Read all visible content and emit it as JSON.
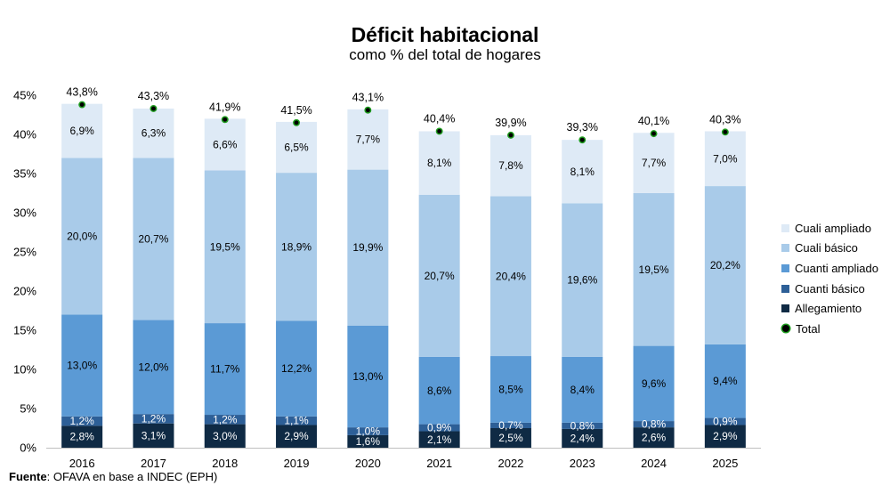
{
  "chart_data": {
    "type": "bar",
    "stacked": true,
    "title": "Déficit habitacional",
    "subtitle": "como % del total de hogares",
    "categories": [
      "2016",
      "2017",
      "2018",
      "2019",
      "2020",
      "2021",
      "2022",
      "2023",
      "2024",
      "2025"
    ],
    "series": [
      {
        "name": "Allegamiento",
        "color": "#0f2a44",
        "values": [
          2.8,
          3.1,
          3.0,
          2.9,
          1.6,
          2.1,
          2.5,
          2.4,
          2.6,
          2.9
        ],
        "labels": [
          "2,8%",
          "3,1%",
          "3,0%",
          "2,9%",
          "1,6%",
          "2,1%",
          "2,5%",
          "2,4%",
          "2,6%",
          "2,9%"
        ]
      },
      {
        "name": "Cuanti básico",
        "color": "#2d5f97",
        "values": [
          1.2,
          1.2,
          1.2,
          1.1,
          1.0,
          0.9,
          0.7,
          0.8,
          0.8,
          0.9
        ],
        "labels": [
          "1,2%",
          "1,2%",
          "1,2%",
          "1,1%",
          "1,0%",
          "0,9%",
          "0,7%",
          "0,8%",
          "0,8%",
          "0,9%"
        ]
      },
      {
        "name": "Cuanti ampliado",
        "color": "#5b9ad5",
        "values": [
          13.0,
          12.0,
          11.7,
          12.2,
          13.0,
          8.6,
          8.5,
          8.4,
          9.6,
          9.4
        ],
        "labels": [
          "13,0%",
          "12,0%",
          "11,7%",
          "12,2%",
          "13,0%",
          "8,6%",
          "8,5%",
          "8,4%",
          "9,6%",
          "9,4%"
        ]
      },
      {
        "name": "Cuali básico",
        "color": "#a9cbe9",
        "values": [
          20.0,
          20.7,
          19.5,
          18.9,
          19.9,
          20.7,
          20.4,
          19.6,
          19.5,
          20.2
        ],
        "labels": [
          "20,0%",
          "20,7%",
          "19,5%",
          "18,9%",
          "19,9%",
          "20,7%",
          "20,4%",
          "19,6%",
          "19,5%",
          "20,2%"
        ]
      },
      {
        "name": "Cuali ampliado",
        "color": "#deeaf6",
        "values": [
          6.9,
          6.3,
          6.6,
          6.5,
          7.7,
          8.1,
          7.8,
          8.1,
          7.7,
          7.0
        ],
        "labels": [
          "6,9%",
          "6,3%",
          "6,6%",
          "6,5%",
          "7,7%",
          "8,1%",
          "7,8%",
          "8,1%",
          "7,7%",
          "7,0%"
        ]
      }
    ],
    "total": {
      "name": "Total",
      "values": [
        43.8,
        43.3,
        41.9,
        41.5,
        43.1,
        40.4,
        39.9,
        39.3,
        40.1,
        40.3
      ],
      "labels": [
        "43,8%",
        "43,3%",
        "41,9%",
        "41,5%",
        "43,1%",
        "40,4%",
        "39,9%",
        "39,3%",
        "40,1%",
        "40,3%"
      ]
    },
    "ylim": [
      0,
      45
    ],
    "yticks": [
      0,
      5,
      10,
      15,
      20,
      25,
      30,
      35,
      40,
      45
    ],
    "ytick_labels": [
      "0%",
      "5%",
      "10%",
      "15%",
      "20%",
      "25%",
      "30%",
      "35%",
      "40%",
      "45%"
    ],
    "xlabel": "",
    "ylabel": "",
    "grid": false,
    "legend_position": "right",
    "legend_order": [
      "Cuali ampliado",
      "Cuali básico",
      "Cuanti ampliado",
      "Cuanti básico",
      "Allegamiento",
      "Total"
    ]
  },
  "source": {
    "label": "Fuente",
    "text": ": OFAVA en base a INDEC (EPH)"
  }
}
